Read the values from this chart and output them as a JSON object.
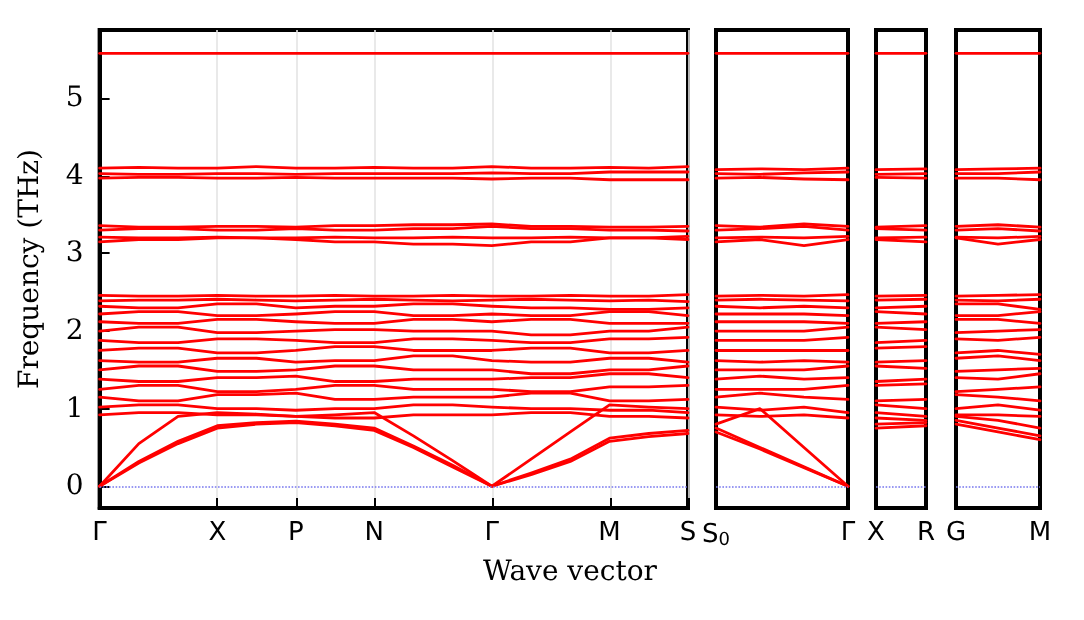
{
  "chart_data": [
    {
      "type": "line",
      "ylabel": "Frequency (THz)",
      "xlabel": "Wave vector",
      "marker": "none",
      "grid": "x",
      "categories": [
        "Γ",
        null,
        null,
        "X",
        null,
        "P",
        null,
        "N",
        null,
        null,
        "Γ",
        null,
        null,
        "M",
        null,
        "S"
      ],
      "ylim": [
        -0.28,
        5.88
      ],
      "yticks": [
        0,
        1,
        2,
        3,
        4,
        5
      ],
      "ref_lines": [
        {
          "axis": "y",
          "value": 0,
          "color": "#7777ee",
          "line_style": "dotted"
        }
      ],
      "series": [
        {
          "color": "#ff0000",
          "values": [
            0,
            0.3,
            0.55,
            0.75,
            0.8,
            0.82,
            0.78,
            0.72,
            0.5,
            0.25,
            0,
            0.15,
            0.32,
            0.58,
            0.64,
            0.68
          ]
        },
        {
          "color": "#ff0000",
          "values": [
            0,
            0.32,
            0.58,
            0.78,
            0.82,
            0.84,
            0.8,
            0.75,
            0.52,
            0.27,
            0,
            0.17,
            0.35,
            0.62,
            0.68,
            0.72
          ]
        },
        {
          "color": "#ff0000",
          "values": [
            0,
            0.55,
            0.9,
            0.95,
            0.93,
            0.9,
            0.92,
            0.95,
            0.65,
            0.33,
            0,
            0.35,
            0.7,
            1.05,
            1.02,
            1.0
          ]
        },
        {
          "color": "#ff0000",
          "values": [
            0.92,
            0.95,
            0.95,
            0.92,
            0.92,
            0.9,
            0.88,
            0.88,
            0.92,
            0.92,
            0.92,
            0.95,
            0.95,
            0.9,
            0.9,
            0.88
          ]
        },
        {
          "color": "#ff0000",
          "values": [
            1.02,
            1.05,
            1.05,
            1.0,
            1.0,
            0.98,
            1.0,
            1.0,
            1.05,
            1.05,
            1.02,
            1.0,
            1.0,
            0.98,
            0.98,
            0.95
          ]
        },
        {
          "color": "#ff0000",
          "values": [
            1.15,
            1.1,
            1.1,
            1.18,
            1.18,
            1.2,
            1.12,
            1.12,
            1.15,
            1.15,
            1.15,
            1.2,
            1.2,
            1.1,
            1.1,
            1.12
          ]
        },
        {
          "color": "#ff0000",
          "values": [
            1.25,
            1.3,
            1.3,
            1.22,
            1.22,
            1.25,
            1.3,
            1.3,
            1.25,
            1.25,
            1.25,
            1.22,
            1.22,
            1.28,
            1.28,
            1.3
          ]
        },
        {
          "color": "#ff0000",
          "values": [
            1.38,
            1.35,
            1.35,
            1.4,
            1.4,
            1.42,
            1.35,
            1.35,
            1.38,
            1.38,
            1.38,
            1.4,
            1.4,
            1.45,
            1.45,
            1.4
          ]
        },
        {
          "color": "#ff0000",
          "values": [
            1.5,
            1.55,
            1.55,
            1.48,
            1.48,
            1.5,
            1.55,
            1.55,
            1.5,
            1.5,
            1.5,
            1.45,
            1.45,
            1.5,
            1.5,
            1.55
          ]
        },
        {
          "color": "#ff0000",
          "values": [
            1.62,
            1.6,
            1.6,
            1.65,
            1.65,
            1.6,
            1.62,
            1.62,
            1.68,
            1.68,
            1.62,
            1.6,
            1.6,
            1.65,
            1.65,
            1.6
          ]
        },
        {
          "color": "#ff0000",
          "values": [
            1.75,
            1.78,
            1.78,
            1.72,
            1.72,
            1.75,
            1.8,
            1.8,
            1.75,
            1.75,
            1.75,
            1.78,
            1.78,
            1.72,
            1.72,
            1.75
          ]
        },
        {
          "color": "#ff0000",
          "values": [
            1.88,
            1.85,
            1.85,
            1.9,
            1.9,
            1.88,
            1.85,
            1.85,
            1.9,
            1.9,
            1.88,
            1.85,
            1.85,
            1.9,
            1.9,
            1.92
          ]
        },
        {
          "color": "#ff0000",
          "values": [
            2.0,
            2.05,
            2.05,
            1.98,
            1.98,
            2.0,
            2.02,
            2.02,
            2.0,
            2.0,
            2.0,
            1.95,
            1.95,
            2.0,
            2.0,
            2.05
          ]
        },
        {
          "color": "#ff0000",
          "values": [
            2.12,
            2.1,
            2.1,
            2.15,
            2.15,
            2.12,
            2.1,
            2.1,
            2.15,
            2.15,
            2.12,
            2.15,
            2.15,
            2.1,
            2.1,
            2.1
          ]
        },
        {
          "color": "#ff0000",
          "values": [
            2.22,
            2.25,
            2.25,
            2.2,
            2.2,
            2.22,
            2.25,
            2.25,
            2.2,
            2.2,
            2.22,
            2.2,
            2.2,
            2.25,
            2.25,
            2.2
          ]
        },
        {
          "color": "#ff0000",
          "values": [
            2.32,
            2.3,
            2.3,
            2.35,
            2.35,
            2.3,
            2.32,
            2.32,
            2.35,
            2.35,
            2.32,
            2.3,
            2.3,
            2.28,
            2.28,
            2.3
          ]
        },
        {
          "color": "#ff0000",
          "values": [
            2.39,
            2.4,
            2.4,
            2.41,
            2.4,
            2.39,
            2.4,
            2.41,
            2.4,
            2.39,
            2.4,
            2.41,
            2.4,
            2.39,
            2.4,
            2.38
          ]
        },
        {
          "color": "#ff0000",
          "values": [
            2.46,
            2.45,
            2.45,
            2.46,
            2.45,
            2.45,
            2.46,
            2.45,
            2.45,
            2.46,
            2.45,
            2.45,
            2.46,
            2.45,
            2.45,
            2.47
          ]
        },
        {
          "color": "#ff0000",
          "values": [
            3.15,
            3.18,
            3.18,
            3.2,
            3.2,
            3.18,
            3.15,
            3.15,
            3.12,
            3.12,
            3.1,
            3.15,
            3.15,
            3.2,
            3.2,
            3.18
          ]
        },
        {
          "color": "#ff0000",
          "values": [
            3.21,
            3.2,
            3.2,
            3.21,
            3.2,
            3.2,
            3.21,
            3.2,
            3.2,
            3.21,
            3.2,
            3.2,
            3.21,
            3.2,
            3.2,
            3.22
          ]
        },
        {
          "color": "#ff0000",
          "values": [
            3.3,
            3.32,
            3.32,
            3.3,
            3.3,
            3.32,
            3.3,
            3.3,
            3.32,
            3.32,
            3.35,
            3.32,
            3.32,
            3.3,
            3.3,
            3.29
          ]
        },
        {
          "color": "#ff0000",
          "values": [
            3.36,
            3.34,
            3.34,
            3.35,
            3.35,
            3.34,
            3.36,
            3.36,
            3.37,
            3.37,
            3.38,
            3.35,
            3.35,
            3.34,
            3.34,
            3.35
          ]
        },
        {
          "color": "#ff0000",
          "values": [
            3.97,
            3.98,
            3.98,
            3.97,
            3.97,
            3.98,
            3.97,
            3.97,
            3.97,
            3.97,
            3.96,
            3.97,
            3.97,
            3.95,
            3.95,
            3.95
          ]
        },
        {
          "color": "#ff0000",
          "values": [
            4.03,
            4.02,
            4.02,
            4.03,
            4.03,
            4.02,
            4.03,
            4.03,
            4.03,
            4.03,
            4.04,
            4.03,
            4.03,
            4.05,
            4.05,
            4.05
          ]
        },
        {
          "color": "#ff0000",
          "values": [
            4.1,
            4.11,
            4.1,
            4.1,
            4.12,
            4.1,
            4.1,
            4.11,
            4.1,
            4.1,
            4.12,
            4.1,
            4.1,
            4.11,
            4.1,
            4.12
          ]
        },
        {
          "color": "#ff0000",
          "values": [
            5.58,
            5.58,
            5.58,
            5.58,
            5.58,
            5.58,
            5.58,
            5.58,
            5.58,
            5.58,
            5.58,
            5.58,
            5.58,
            5.58,
            5.58,
            5.58
          ]
        }
      ]
    },
    {
      "type": "line",
      "marker": "none",
      "tick_labels": "x",
      "categories": [
        "S$_{0}$",
        null,
        null,
        "Γ"
      ],
      "ylim": [
        -0.28,
        5.88
      ],
      "yticks": [
        0,
        1,
        2,
        3,
        4,
        5
      ],
      "ref_lines": [
        {
          "axis": "y",
          "value": 0,
          "color": "#7777ee",
          "line_style": "dotted"
        }
      ],
      "series": [
        {
          "color": "#ff0000",
          "values": [
            0.7,
            0.48,
            0.24,
            0
          ]
        },
        {
          "color": "#ff0000",
          "values": [
            0.75,
            0.5,
            0.25,
            0
          ]
        },
        {
          "color": "#ff0000",
          "values": [
            0.8,
            1.0,
            0.5,
            0
          ]
        },
        {
          "color": "#ff0000",
          "values": [
            0.92,
            0.9,
            0.92,
            0.88
          ]
        },
        {
          "color": "#ff0000",
          "values": [
            1.02,
            0.98,
            1.02,
            0.95
          ]
        },
        {
          "color": "#ff0000",
          "values": [
            1.15,
            1.2,
            1.15,
            1.12
          ]
        },
        {
          "color": "#ff0000",
          "values": [
            1.25,
            1.25,
            1.25,
            1.3
          ]
        },
        {
          "color": "#ff0000",
          "values": [
            1.38,
            1.42,
            1.38,
            1.4
          ]
        },
        {
          "color": "#ff0000",
          "values": [
            1.5,
            1.5,
            1.5,
            1.55
          ]
        },
        {
          "color": "#ff0000",
          "values": [
            1.62,
            1.6,
            1.62,
            1.6
          ]
        },
        {
          "color": "#ff0000",
          "values": [
            1.75,
            1.75,
            1.75,
            1.75
          ]
        },
        {
          "color": "#ff0000",
          "values": [
            1.88,
            1.88,
            1.88,
            1.92
          ]
        },
        {
          "color": "#ff0000",
          "values": [
            2.0,
            2.0,
            2.0,
            2.05
          ]
        },
        {
          "color": "#ff0000",
          "values": [
            2.12,
            2.12,
            2.12,
            2.1
          ]
        },
        {
          "color": "#ff0000",
          "values": [
            2.22,
            2.22,
            2.22,
            2.2
          ]
        },
        {
          "color": "#ff0000",
          "values": [
            2.32,
            2.3,
            2.32,
            2.3
          ]
        },
        {
          "color": "#ff0000",
          "values": [
            2.4,
            2.41,
            2.4,
            2.39
          ]
        },
        {
          "color": "#ff0000",
          "values": [
            2.45,
            2.46,
            2.45,
            2.47
          ]
        },
        {
          "color": "#ff0000",
          "values": [
            3.15,
            3.18,
            3.1,
            3.18
          ]
        },
        {
          "color": "#ff0000",
          "values": [
            3.2,
            3.21,
            3.2,
            3.22
          ]
        },
        {
          "color": "#ff0000",
          "values": [
            3.3,
            3.32,
            3.35,
            3.3
          ]
        },
        {
          "color": "#ff0000",
          "values": [
            3.36,
            3.34,
            3.38,
            3.35
          ]
        },
        {
          "color": "#ff0000",
          "values": [
            3.97,
            3.98,
            3.96,
            3.95
          ]
        },
        {
          "color": "#ff0000",
          "values": [
            4.03,
            4.02,
            4.04,
            4.05
          ]
        },
        {
          "color": "#ff0000",
          "values": [
            4.08,
            4.09,
            4.08,
            4.1
          ]
        },
        {
          "color": "#ff0000",
          "values": [
            5.58,
            5.58,
            5.58,
            5.58
          ]
        }
      ]
    },
    {
      "type": "line",
      "marker": "none",
      "tick_labels": "x",
      "categories": [
        "X",
        "R"
      ],
      "ylim": [
        -0.28,
        5.88
      ],
      "yticks": [
        0,
        1,
        2,
        3,
        4,
        5
      ],
      "ref_lines": [
        {
          "axis": "y",
          "value": 0,
          "color": "#7777ee",
          "line_style": "dotted"
        }
      ],
      "series": [
        {
          "color": "#ff0000",
          "values": [
            0.75,
            0.78
          ]
        },
        {
          "color": "#ff0000",
          "values": [
            0.8,
            0.82
          ]
        },
        {
          "color": "#ff0000",
          "values": [
            0.88,
            0.85
          ]
        },
        {
          "color": "#ff0000",
          "values": [
            0.95,
            0.9
          ]
        },
        {
          "color": "#ff0000",
          "values": [
            1.05,
            1.0
          ]
        },
        {
          "color": "#ff0000",
          "values": [
            1.1,
            1.12
          ]
        },
        {
          "color": "#ff0000",
          "values": [
            1.3,
            1.32
          ]
        },
        {
          "color": "#ff0000",
          "values": [
            1.35,
            1.38
          ]
        },
        {
          "color": "#ff0000",
          "values": [
            1.55,
            1.52
          ]
        },
        {
          "color": "#ff0000",
          "values": [
            1.6,
            1.62
          ]
        },
        {
          "color": "#ff0000",
          "values": [
            1.78,
            1.8
          ]
        },
        {
          "color": "#ff0000",
          "values": [
            1.85,
            1.88
          ]
        },
        {
          "color": "#ff0000",
          "values": [
            2.05,
            2.02
          ]
        },
        {
          "color": "#ff0000",
          "values": [
            2.1,
            2.12
          ]
        },
        {
          "color": "#ff0000",
          "values": [
            2.25,
            2.22
          ]
        },
        {
          "color": "#ff0000",
          "values": [
            2.3,
            2.32
          ]
        },
        {
          "color": "#ff0000",
          "values": [
            2.4,
            2.41
          ]
        },
        {
          "color": "#ff0000",
          "values": [
            2.45,
            2.46
          ]
        },
        {
          "color": "#ff0000",
          "values": [
            3.18,
            3.15
          ]
        },
        {
          "color": "#ff0000",
          "values": [
            3.2,
            3.21
          ]
        },
        {
          "color": "#ff0000",
          "values": [
            3.32,
            3.3
          ]
        },
        {
          "color": "#ff0000",
          "values": [
            3.34,
            3.36
          ]
        },
        {
          "color": "#ff0000",
          "values": [
            3.98,
            3.97
          ]
        },
        {
          "color": "#ff0000",
          "values": [
            4.02,
            4.03
          ]
        },
        {
          "color": "#ff0000",
          "values": [
            4.08,
            4.09
          ]
        },
        {
          "color": "#ff0000",
          "values": [
            5.58,
            5.58
          ]
        }
      ]
    },
    {
      "type": "line",
      "marker": "none",
      "tick_labels": "x",
      "categories": [
        "G",
        null,
        "M"
      ],
      "ylim": [
        -0.28,
        5.88
      ],
      "yticks": [
        0,
        1,
        2,
        3,
        4,
        5
      ],
      "ref_lines": [
        {
          "axis": "y",
          "value": 0,
          "color": "#7777ee",
          "line_style": "dotted"
        }
      ],
      "series": [
        {
          "color": "#ff0000",
          "values": [
            0.8,
            0.7,
            0.6
          ]
        },
        {
          "color": "#ff0000",
          "values": [
            0.85,
            0.75,
            0.65
          ]
        },
        {
          "color": "#ff0000",
          "values": [
            0.9,
            0.85,
            0.75
          ]
        },
        {
          "color": "#ff0000",
          "values": [
            0.92,
            0.92,
            0.9
          ]
        },
        {
          "color": "#ff0000",
          "values": [
            1.0,
            1.05,
            0.98
          ]
        },
        {
          "color": "#ff0000",
          "values": [
            1.18,
            1.15,
            1.1
          ]
        },
        {
          "color": "#ff0000",
          "values": [
            1.22,
            1.25,
            1.28
          ]
        },
        {
          "color": "#ff0000",
          "values": [
            1.4,
            1.38,
            1.45
          ]
        },
        {
          "color": "#ff0000",
          "values": [
            1.48,
            1.5,
            1.52
          ]
        },
        {
          "color": "#ff0000",
          "values": [
            1.65,
            1.68,
            1.62
          ]
        },
        {
          "color": "#ff0000",
          "values": [
            1.72,
            1.75,
            1.7
          ]
        },
        {
          "color": "#ff0000",
          "values": [
            1.9,
            1.88,
            1.92
          ]
        },
        {
          "color": "#ff0000",
          "values": [
            1.98,
            2.0,
            2.02
          ]
        },
        {
          "color": "#ff0000",
          "values": [
            2.15,
            2.15,
            2.1
          ]
        },
        {
          "color": "#ff0000",
          "values": [
            2.2,
            2.2,
            2.25
          ]
        },
        {
          "color": "#ff0000",
          "values": [
            2.35,
            2.35,
            2.28
          ]
        },
        {
          "color": "#ff0000",
          "values": [
            2.4,
            2.39,
            2.41
          ]
        },
        {
          "color": "#ff0000",
          "values": [
            2.45,
            2.46,
            2.47
          ]
        },
        {
          "color": "#ff0000",
          "values": [
            3.2,
            3.12,
            3.18
          ]
        },
        {
          "color": "#ff0000",
          "values": [
            3.21,
            3.2,
            3.22
          ]
        },
        {
          "color": "#ff0000",
          "values": [
            3.3,
            3.32,
            3.29
          ]
        },
        {
          "color": "#ff0000",
          "values": [
            3.35,
            3.37,
            3.34
          ]
        },
        {
          "color": "#ff0000",
          "values": [
            3.97,
            3.97,
            3.95
          ]
        },
        {
          "color": "#ff0000",
          "values": [
            4.03,
            4.03,
            4.05
          ]
        },
        {
          "color": "#ff0000",
          "values": [
            4.08,
            4.09,
            4.1
          ]
        },
        {
          "color": "#ff0000",
          "values": [
            5.58,
            5.58,
            5.58
          ]
        }
      ]
    }
  ]
}
